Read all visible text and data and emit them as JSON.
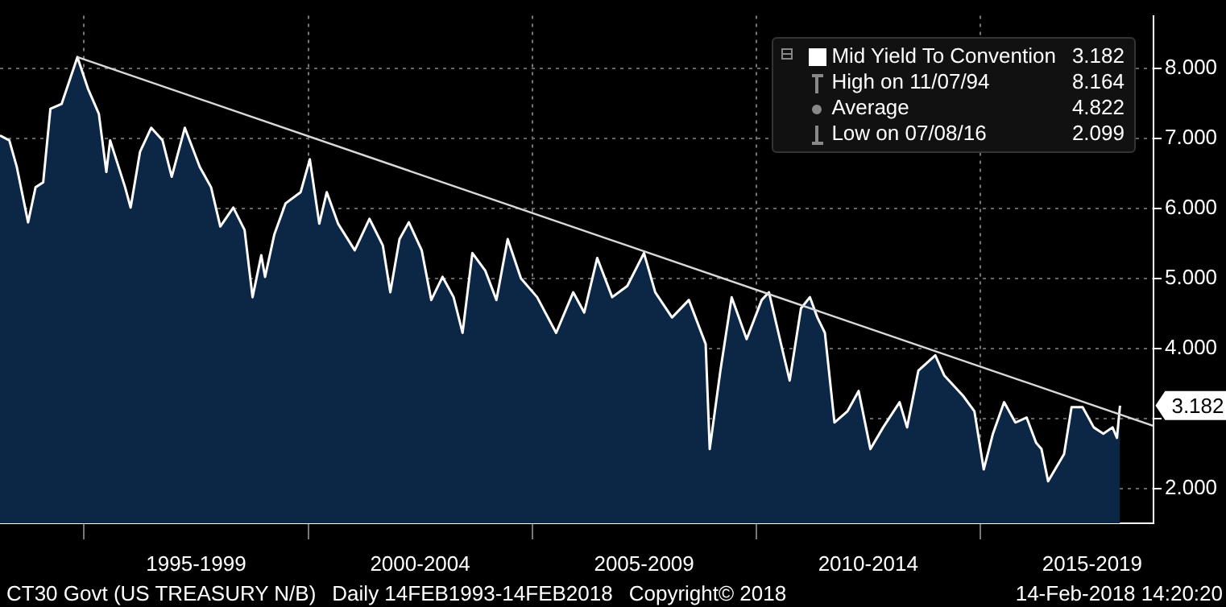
{
  "chart_data": {
    "type": "area",
    "xlim": [
      "1993-02-14",
      "2018-11-14"
    ],
    "ylim": [
      1.5,
      8.75
    ],
    "xticks": [
      {
        "value": "1995-01-01",
        "label": null
      },
      {
        "value": "1997-07-02",
        "label": "1995-1999"
      },
      {
        "value": "2000-01-01",
        "label": null
      },
      {
        "value": "2002-07-02",
        "label": "2000-2004"
      },
      {
        "value": "2005-01-01",
        "label": null
      },
      {
        "value": "2007-07-02",
        "label": "2005-2009"
      },
      {
        "value": "2010-01-01",
        "label": null
      },
      {
        "value": "2012-07-02",
        "label": "2010-2014"
      },
      {
        "value": "2015-01-01",
        "label": null
      },
      {
        "value": "2017-07-02",
        "label": "2015-2019"
      }
    ],
    "yticks": [
      {
        "value": 2,
        "label": "2.000"
      },
      {
        "value": 3,
        "label": null
      },
      {
        "value": 4,
        "label": "4.000"
      },
      {
        "value": 5,
        "label": "5.000"
      },
      {
        "value": 6,
        "label": "6.000"
      },
      {
        "value": 7,
        "label": "7.000"
      },
      {
        "value": 8,
        "label": "8.000"
      }
    ],
    "grid": true,
    "legend": "top right",
    "marker": "none",
    "series": [
      {
        "name": "Mid Yield To Convention",
        "color": "#ffffff",
        "x": [
          "1993-02-14",
          "1993-05-01",
          "1993-07-01",
          "1993-10-01",
          "1993-12-01",
          "1994-02-01",
          "1994-04-01",
          "1994-07-01",
          "1994-11-07",
          "1995-02-01",
          "1995-05-01",
          "1995-07-01",
          "1995-08-01",
          "1995-12-01",
          "1996-01-15",
          "1996-04-01",
          "1996-07-01",
          "1996-10-01",
          "1996-12-15",
          "1997-04-01",
          "1997-08-01",
          "1997-11-01",
          "1998-01-15",
          "1998-05-01",
          "1998-08-01",
          "1998-10-05",
          "1998-12-15",
          "1999-01-15",
          "1999-04-01",
          "1999-07-01",
          "1999-11-01",
          "2000-01-15",
          "2000-04-01",
          "2000-06-01",
          "2000-09-01",
          "2001-01-15",
          "2001-05-15",
          "2001-09-01",
          "2001-11-01",
          "2002-01-15",
          "2002-04-01",
          "2002-07-15",
          "2002-10-01",
          "2003-01-01",
          "2003-04-01",
          "2003-06-13",
          "2003-09-01",
          "2003-12-15",
          "2004-03-15",
          "2004-06-15",
          "2004-10-01",
          "2005-02-10",
          "2005-07-15",
          "2005-12-01",
          "2006-03-01",
          "2006-06-15",
          "2006-10-15",
          "2007-02-15",
          "2007-07-01",
          "2007-10-01",
          "2008-02-15",
          "2008-07-01",
          "2008-11-15",
          "2008-12-18",
          "2009-03-15",
          "2009-06-15",
          "2009-10-15",
          "2010-02-15",
          "2010-04-15",
          "2010-08-01",
          "2010-10-01",
          "2011-01-01",
          "2011-03-15",
          "2011-05-15",
          "2011-07-15",
          "2011-10-01",
          "2012-01-15",
          "2012-04-15",
          "2012-07-20",
          "2012-11-01",
          "2013-03-15",
          "2013-05-15",
          "2013-08-15",
          "2013-12-31",
          "2014-03-15",
          "2014-08-15",
          "2014-11-15",
          "2015-01-30",
          "2015-04-15",
          "2015-07-15",
          "2015-10-15",
          "2016-01-15",
          "2016-04-01",
          "2016-05-15",
          "2016-07-08",
          "2016-11-15",
          "2017-01-15",
          "2017-04-15",
          "2017-07-15",
          "2017-10-01",
          "2017-12-15",
          "2018-01-20",
          "2018-02-14"
        ],
        "values": [
          7.04,
          6.97,
          6.59,
          5.8,
          6.3,
          6.37,
          7.42,
          7.49,
          8.16,
          7.71,
          7.35,
          6.52,
          6.97,
          6.3,
          6.01,
          6.81,
          7.15,
          6.97,
          6.45,
          7.15,
          6.59,
          6.3,
          5.74,
          6.01,
          5.69,
          4.73,
          5.33,
          5.02,
          5.63,
          6.07,
          6.23,
          6.7,
          5.78,
          6.23,
          5.78,
          5.4,
          5.85,
          5.47,
          4.8,
          5.56,
          5.8,
          5.4,
          4.69,
          5.02,
          4.73,
          4.22,
          5.36,
          5.11,
          4.69,
          5.56,
          5.0,
          4.73,
          4.22,
          4.8,
          4.51,
          5.29,
          4.73,
          4.89,
          5.36,
          4.8,
          4.44,
          4.69,
          4.06,
          2.56,
          3.68,
          4.73,
          4.13,
          4.69,
          4.8,
          3.99,
          3.54,
          4.57,
          4.73,
          4.44,
          4.22,
          2.94,
          3.1,
          3.39,
          2.56,
          2.87,
          3.23,
          2.87,
          3.68,
          3.9,
          3.61,
          3.32,
          3.1,
          2.27,
          2.78,
          3.23,
          2.94,
          3.01,
          2.65,
          2.56,
          2.1,
          2.49,
          3.16,
          3.16,
          2.87,
          2.78,
          2.87,
          2.72,
          3.18
        ]
      },
      {
        "type": "line",
        "color": "#d9d9d9",
        "x": [
          "1994-11-07",
          "2018-11-14"
        ],
        "values": [
          8.16,
          2.89
        ]
      }
    ],
    "annotations": [
      {
        "text": "3.182",
        "x": "2018-02-14",
        "y": 3.182
      },
      "3.182",
      "High on 11/07/94",
      "8.164",
      "Average",
      "4.822",
      "Low on 07/08/16",
      "2.099",
      "CT30 Govt (US TREASURY N/B)",
      "Daily 14FEB1993-14FEB2018",
      "Copyright© 2018",
      "14-Feb-2018 14:20:20"
    ]
  }
}
